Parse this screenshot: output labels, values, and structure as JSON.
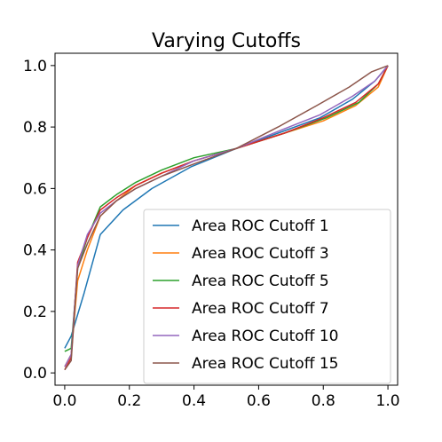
{
  "chart_data": {
    "type": "line",
    "title": "Varying Cutoffs",
    "xlabel": "",
    "ylabel": "",
    "xlim": [
      -0.03,
      1.03
    ],
    "ylim": [
      -0.04,
      1.04
    ],
    "xticks": [
      "0.0",
      "0.2",
      "0.4",
      "0.6",
      "0.8",
      "1.0"
    ],
    "yticks": [
      "0.0",
      "0.2",
      "0.4",
      "0.6",
      "0.8",
      "1.0"
    ],
    "grid": false,
    "legend_position": "lower-right",
    "series": [
      {
        "name": "Area ROC Cutoff 1",
        "color": "#1f77b4",
        "x": [
          0.0,
          0.02,
          0.06,
          0.11,
          0.18,
          0.27,
          0.39,
          0.53,
          0.66,
          0.79,
          0.89,
          0.96,
          1.0
        ],
        "y": [
          0.08,
          0.12,
          0.26,
          0.45,
          0.53,
          0.6,
          0.67,
          0.73,
          0.78,
          0.83,
          0.89,
          0.95,
          1.0
        ]
      },
      {
        "name": "Area ROC Cutoff 3",
        "color": "#ff7f0e",
        "x": [
          0.0,
          0.02,
          0.04,
          0.07,
          0.11,
          0.16,
          0.22,
          0.3,
          0.4,
          0.53,
          0.68,
          0.8,
          0.9,
          0.97,
          1.0
        ],
        "y": [
          0.02,
          0.06,
          0.3,
          0.4,
          0.51,
          0.56,
          0.61,
          0.65,
          0.69,
          0.73,
          0.78,
          0.82,
          0.87,
          0.93,
          1.0
        ]
      },
      {
        "name": "Area ROC Cutoff 5",
        "color": "#2ca02c",
        "x": [
          0.0,
          0.02,
          0.04,
          0.07,
          0.11,
          0.16,
          0.22,
          0.3,
          0.4,
          0.53,
          0.68,
          0.81,
          0.91,
          0.97,
          1.0
        ],
        "y": [
          0.07,
          0.08,
          0.34,
          0.44,
          0.54,
          0.58,
          0.62,
          0.66,
          0.7,
          0.73,
          0.78,
          0.83,
          0.88,
          0.94,
          1.0
        ]
      },
      {
        "name": "Area ROC Cutoff 7",
        "color": "#d62728",
        "x": [
          0.0,
          0.02,
          0.04,
          0.07,
          0.11,
          0.16,
          0.22,
          0.3,
          0.4,
          0.53,
          0.68,
          0.8,
          0.9,
          0.97,
          1.0
        ],
        "y": [
          0.01,
          0.05,
          0.36,
          0.44,
          0.53,
          0.57,
          0.61,
          0.65,
          0.69,
          0.73,
          0.78,
          0.83,
          0.88,
          0.94,
          1.0
        ]
      },
      {
        "name": "Area ROC Cutoff 10",
        "color": "#9467bd",
        "x": [
          0.0,
          0.02,
          0.04,
          0.07,
          0.11,
          0.16,
          0.22,
          0.3,
          0.4,
          0.53,
          0.67,
          0.79,
          0.89,
          0.96,
          1.0
        ],
        "y": [
          0.02,
          0.06,
          0.35,
          0.45,
          0.52,
          0.56,
          0.6,
          0.64,
          0.69,
          0.73,
          0.79,
          0.84,
          0.9,
          0.95,
          1.0
        ]
      },
      {
        "name": "Area ROC Cutoff 15",
        "color": "#8c564b",
        "x": [
          0.0,
          0.02,
          0.04,
          0.07,
          0.11,
          0.16,
          0.22,
          0.3,
          0.4,
          0.53,
          0.66,
          0.78,
          0.88,
          0.95,
          1.0
        ],
        "y": [
          0.01,
          0.04,
          0.34,
          0.42,
          0.51,
          0.56,
          0.6,
          0.64,
          0.68,
          0.73,
          0.8,
          0.87,
          0.93,
          0.98,
          1.0
        ]
      }
    ]
  }
}
